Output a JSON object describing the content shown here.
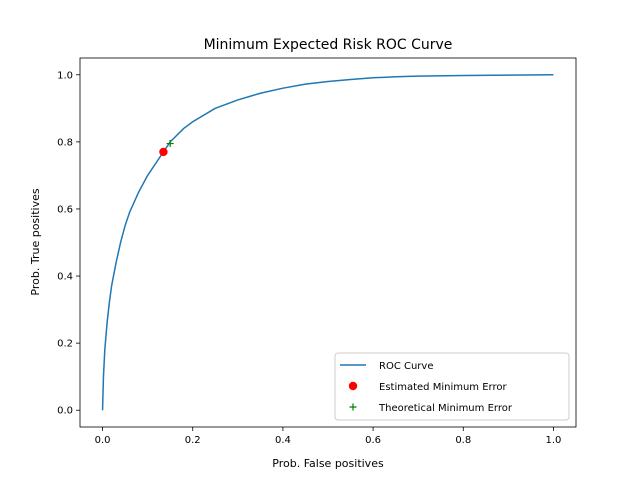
{
  "chart_data": {
    "type": "line",
    "title": "Minimum Expected Risk ROC Curve",
    "xlabel": "Prob. False positives",
    "ylabel": "Prob. True positives",
    "xlim": [
      -0.05,
      1.05
    ],
    "ylim": [
      -0.05,
      1.05
    ],
    "xticks": [
      "0.0",
      "0.2",
      "0.4",
      "0.6",
      "0.8",
      "1.0"
    ],
    "yticks": [
      "0.0",
      "0.2",
      "0.4",
      "0.6",
      "0.8",
      "1.0"
    ],
    "grid": false,
    "legend_position": "lower-right",
    "series": [
      {
        "name": "ROC Curve",
        "kind": "line",
        "color": "#1f77b4",
        "x": [
          0.0,
          0.002,
          0.005,
          0.01,
          0.015,
          0.02,
          0.03,
          0.04,
          0.05,
          0.06,
          0.08,
          0.1,
          0.12,
          0.135,
          0.15,
          0.18,
          0.2,
          0.25,
          0.3,
          0.35,
          0.4,
          0.45,
          0.5,
          0.55,
          0.6,
          0.65,
          0.7,
          0.8,
          0.9,
          1.0
        ],
        "y": [
          0.0,
          0.1,
          0.18,
          0.26,
          0.32,
          0.37,
          0.44,
          0.5,
          0.55,
          0.59,
          0.65,
          0.7,
          0.74,
          0.77,
          0.8,
          0.84,
          0.86,
          0.9,
          0.925,
          0.945,
          0.96,
          0.972,
          0.98,
          0.986,
          0.991,
          0.994,
          0.996,
          0.998,
          0.999,
          1.0
        ]
      },
      {
        "name": "Estimated Minimum Error",
        "kind": "point",
        "marker": "circle",
        "color": "#ff0000",
        "x": [
          0.135
        ],
        "y": [
          0.77
        ]
      },
      {
        "name": "Theoretical Minimum Error",
        "kind": "point",
        "marker": "plus",
        "color": "#008000",
        "x": [
          0.15
        ],
        "y": [
          0.795
        ]
      }
    ]
  }
}
